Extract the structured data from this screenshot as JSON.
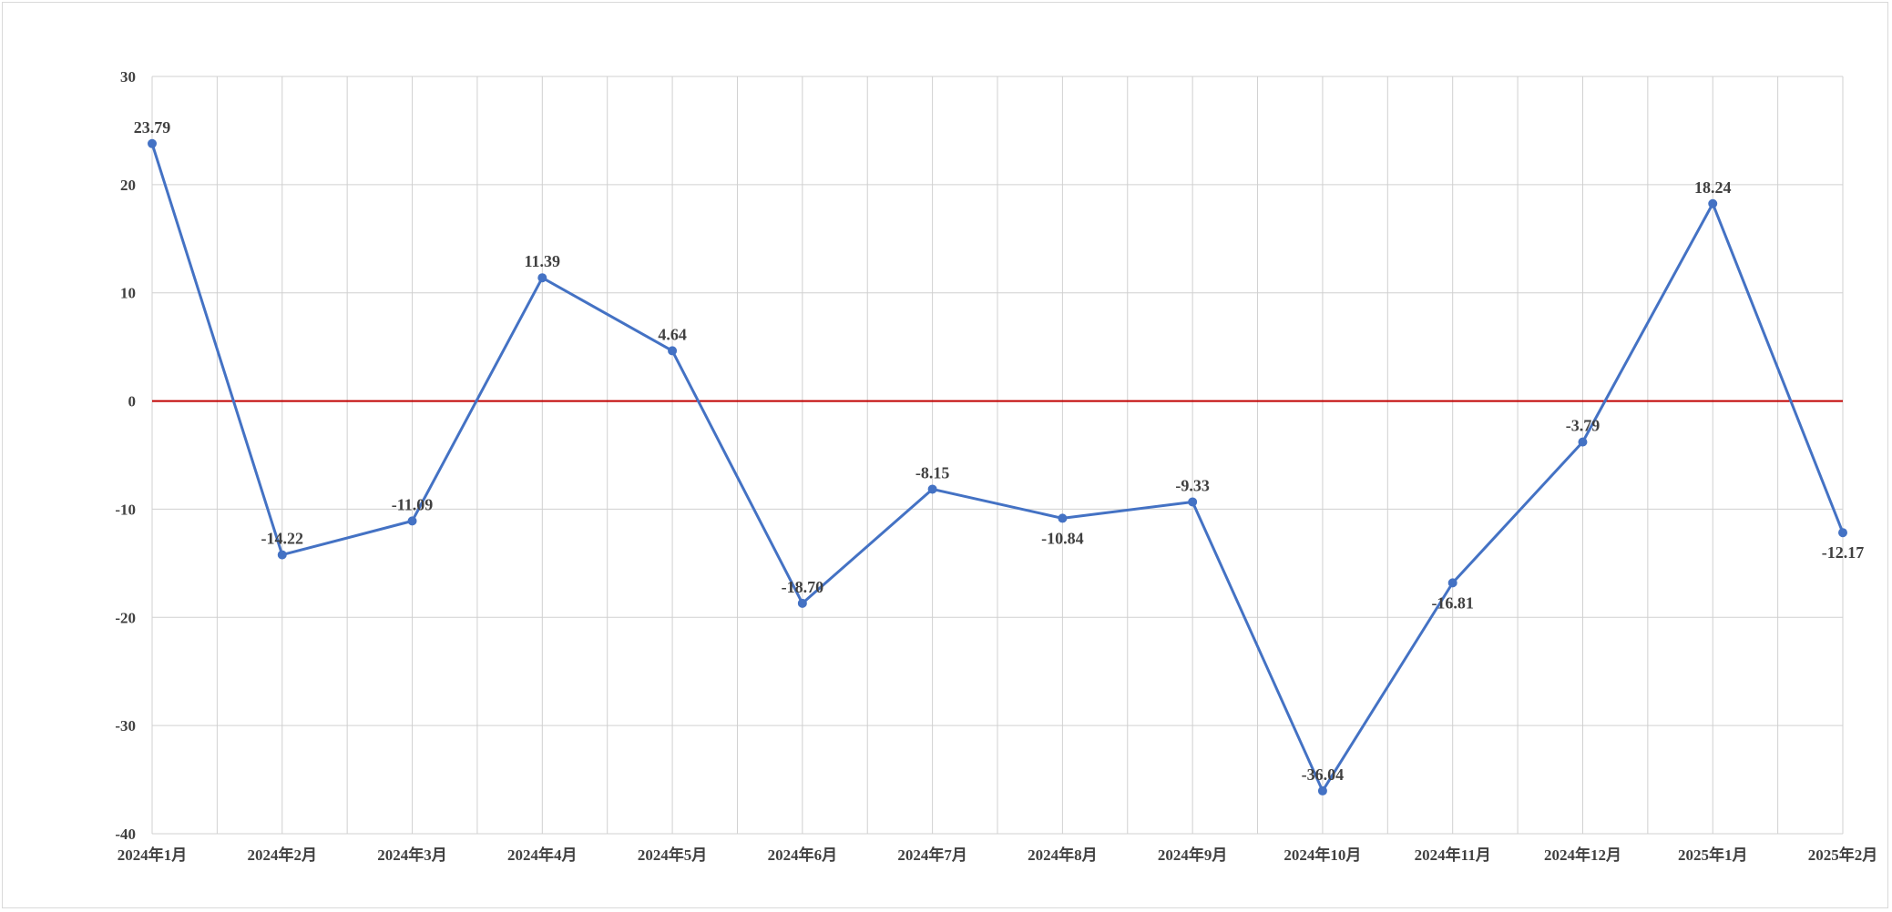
{
  "chart_data": {
    "type": "line",
    "categories": [
      "2024年1月",
      "2024年2月",
      "2024年3月",
      "2024年4月",
      "2024年5月",
      "2024年6月",
      "2024年7月",
      "2024年8月",
      "2024年9月",
      "2024年10月",
      "2024年11月",
      "2024年12月",
      "2025年1月",
      "2025年2月"
    ],
    "series": [
      {
        "values": [
          23.79,
          -14.22,
          -11.09,
          11.39,
          4.64,
          -18.7,
          -8.15,
          -10.84,
          -9.33,
          -36.04,
          -16.81,
          -3.79,
          18.24,
          -12.17
        ],
        "labels": [
          "23.79",
          "-14.22",
          "-11.09",
          "11.39",
          "4.64",
          "-18.70",
          "-8.15",
          "-10.84",
          "-9.33",
          "-36.04",
          "-16.81",
          "-3.79",
          "18.24",
          "-12.17"
        ],
        "label_positions": [
          "above",
          "above",
          "above",
          "above",
          "above",
          "above",
          "above",
          "below",
          "above",
          "above",
          "below",
          "above",
          "above",
          "below"
        ],
        "color": "#4472c4"
      }
    ],
    "reference_line": {
      "value": 0,
      "color": "#c00000"
    },
    "ylim": [
      -40,
      30
    ],
    "yticks": [
      30,
      20,
      10,
      0,
      -10,
      -20,
      -30,
      -40
    ],
    "grid": true,
    "title": "",
    "xlabel": "",
    "ylabel": ""
  }
}
